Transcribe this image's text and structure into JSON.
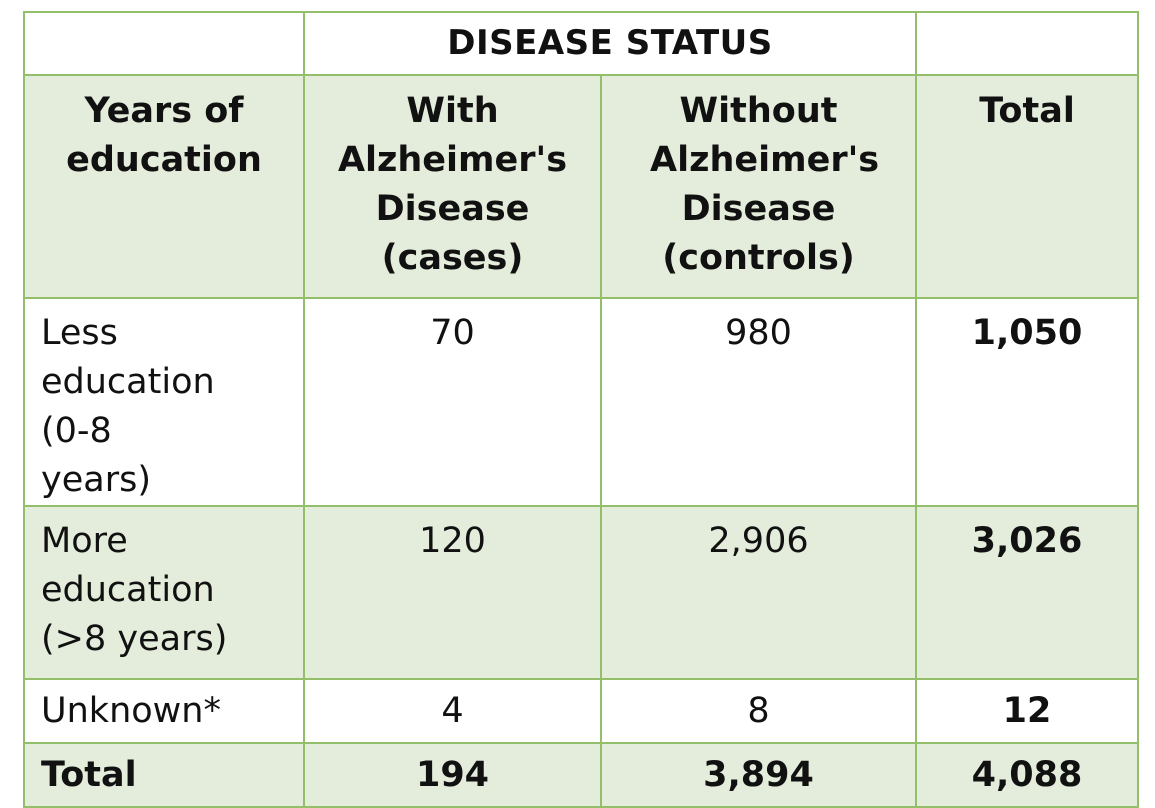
{
  "table": {
    "group_header": "DISEASE STATUS",
    "columns": [
      "Years of education",
      "With Alzheimer's Disease (cases)",
      "Without Alzheimer's Disease (controls)",
      "Total"
    ],
    "rows": [
      {
        "label": "Less education (0-8 years)",
        "cases": "70",
        "controls": "980",
        "total": "1,050"
      },
      {
        "label": "More education (>8 years)",
        "cases": "120",
        "controls": "2,906",
        "total": "3,026"
      },
      {
        "label": "Unknown*",
        "cases": "4",
        "controls": "8",
        "total": "12"
      },
      {
        "label": "Total",
        "cases": "194",
        "controls": "3,894",
        "total": "4,088"
      }
    ]
  },
  "colors": {
    "border": "#93bf6a",
    "shaded_fill": "#e4eddb",
    "plain_fill": "#ffffff"
  }
}
